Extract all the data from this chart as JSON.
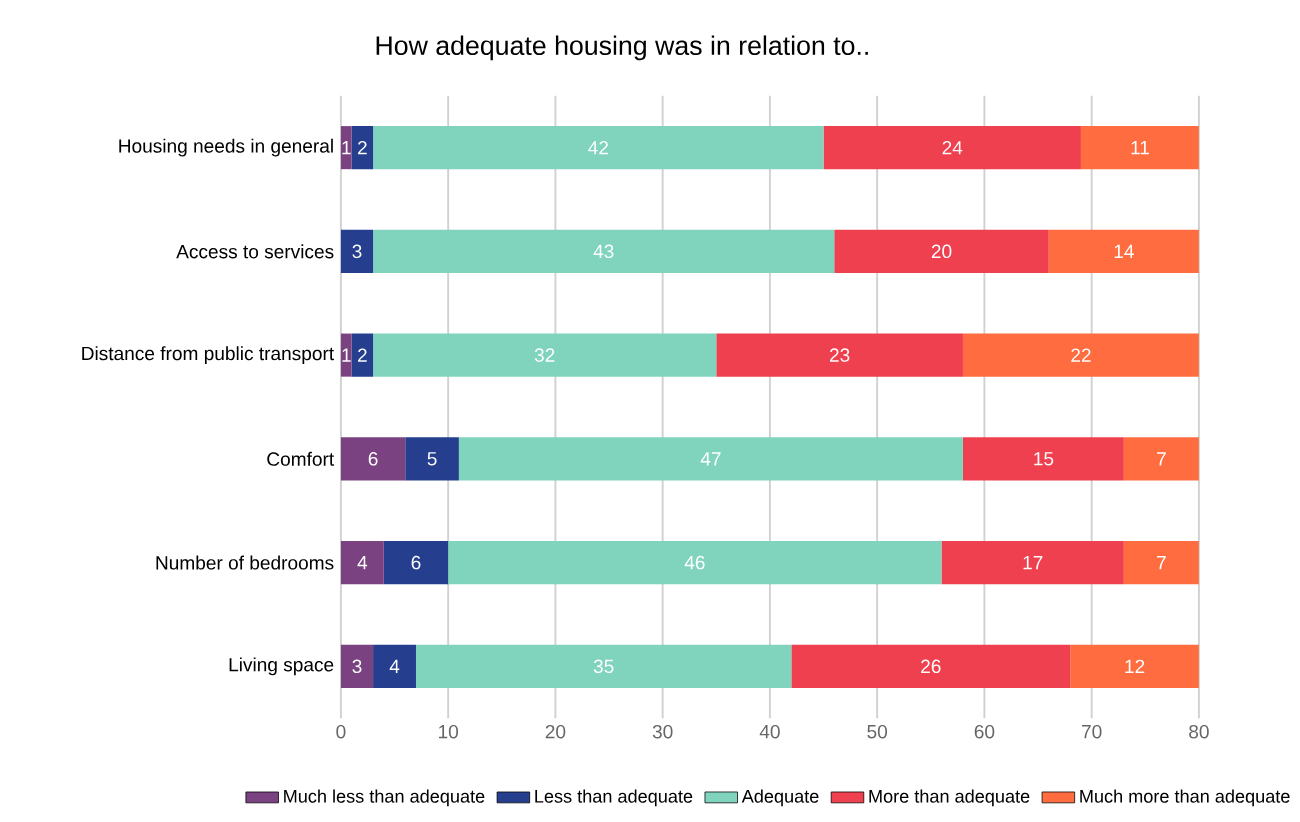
{
  "chart_data": {
    "type": "bar",
    "orientation": "horizontal",
    "stacked": true,
    "title": "How adequate housing was in relation to..",
    "categories": [
      "Housing needs in general",
      "Access to services",
      "Distance from public transport",
      "Comfort",
      "Number of bedrooms",
      "Living space"
    ],
    "series": [
      {
        "name": "Much less than adequate",
        "color": "#7a4280",
        "values": [
          1,
          0,
          1,
          6,
          4,
          3
        ],
        "value_labels": [
          "1",
          null,
          "1",
          "6",
          "4",
          "3"
        ]
      },
      {
        "name": "Less than adequate",
        "color": "#253f8e",
        "values": [
          2,
          3,
          2,
          5,
          6,
          4
        ]
      },
      {
        "name": "Adequate",
        "color": "#80d4bd",
        "values": [
          42,
          43,
          32,
          47,
          46,
          35
        ]
      },
      {
        "name": "More than adequate",
        "color": "#ef404f",
        "values": [
          24,
          20,
          23,
          15,
          17,
          26
        ]
      },
      {
        "name": "Much more than adequate",
        "color": "#fe6c40",
        "values": [
          11,
          14,
          22,
          7,
          7,
          12
        ]
      }
    ],
    "xlim": [
      0,
      80
    ],
    "xticks": [
      0,
      10,
      20,
      30,
      40,
      50,
      60,
      70,
      80
    ],
    "grid": "x",
    "legend": "bottom",
    "data_labels": true
  }
}
